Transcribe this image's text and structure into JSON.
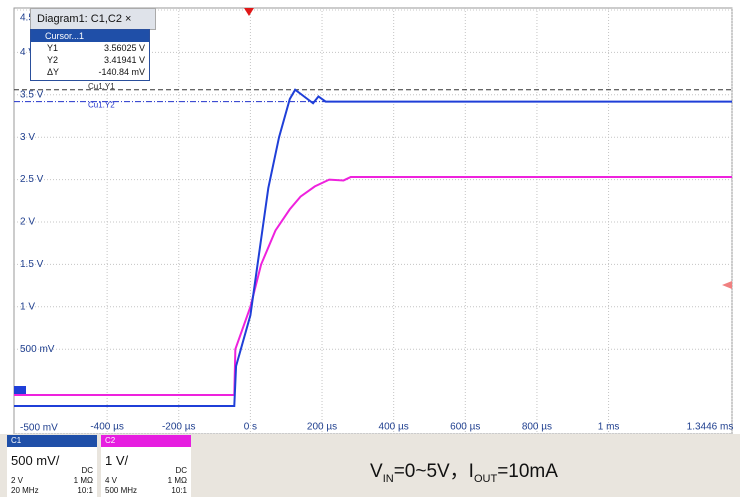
{
  "chart_data": {
    "type": "line",
    "xlim": [
      -660,
      1344.6
    ],
    "ylim": [
      -0.5,
      4.5
    ],
    "xticks": [
      {
        "value": -400,
        "label": "-400 µs"
      },
      {
        "value": -200,
        "label": "-200 µs"
      },
      {
        "value": 0,
        "label": "0 s"
      },
      {
        "value": 200,
        "label": "200 µs"
      },
      {
        "value": 400,
        "label": "400 µs"
      },
      {
        "value": 600,
        "label": "600 µs"
      },
      {
        "value": 800,
        "label": "800 µs"
      },
      {
        "value": 1000,
        "label": "1 ms"
      },
      {
        "value": 1344.6,
        "label": "1.3446 ms"
      }
    ],
    "yticks": [
      {
        "value": -0.5,
        "label": "-500 mV"
      },
      {
        "value": 0.5,
        "label": "500 mV"
      },
      {
        "value": 1,
        "label": "1 V"
      },
      {
        "value": 1.5,
        "label": "1.5 V"
      },
      {
        "value": 2,
        "label": "2 V"
      },
      {
        "value": 2.5,
        "label": "2.5 V"
      },
      {
        "value": 3,
        "label": "3 V"
      },
      {
        "value": 3.5,
        "label": "3.5 V"
      },
      {
        "value": 4,
        "label": "4 V"
      },
      {
        "value": 4.5,
        "label": "4.5 V"
      }
    ],
    "grid": true,
    "cursors": [
      {
        "name": "Cu1.Y1",
        "value": 3.56025,
        "color": "#333333"
      },
      {
        "name": "Cu1.Y2",
        "value": 3.41941,
        "color": "#2233cc"
      }
    ],
    "series": [
      {
        "name": "C1",
        "color": "#1f3fd8",
        "x": [
          -660,
          -45,
          -40,
          0,
          20,
          50,
          80,
          110,
          125,
          150,
          175,
          190,
          210,
          1344.6
        ],
        "values": [
          -0.17,
          -0.17,
          0.3,
          0.9,
          1.5,
          2.4,
          3.0,
          3.45,
          3.56,
          3.48,
          3.4,
          3.48,
          3.42,
          3.42
        ]
      },
      {
        "name": "C2",
        "color": "#ee22dd",
        "x": [
          -660,
          -45,
          -42,
          0,
          30,
          70,
          110,
          140,
          180,
          220,
          260,
          280,
          1344.6
        ],
        "values": [
          -0.04,
          -0.04,
          0.5,
          1.0,
          1.5,
          1.9,
          2.15,
          2.3,
          2.42,
          2.5,
          2.49,
          2.53,
          2.53
        ]
      }
    ]
  },
  "ui": {
    "tab": "Diagram1: C1,C2 ×",
    "cursor_title": "Cursor...1",
    "cursor_rows": [
      [
        "Y1",
        "3.56025 V"
      ],
      [
        "Y2",
        "3.41941 V"
      ],
      [
        "ΔY",
        "-140.84 mV"
      ]
    ],
    "channels": [
      {
        "name": "C1",
        "scale": "500 mV/",
        "coupling": "DC",
        "offset": "2 V",
        "impedance": "1 MΩ",
        "bandwidth": "20 MHz",
        "probe": "10:1"
      },
      {
        "name": "C2",
        "scale": "1 V/",
        "coupling": "DC",
        "offset": "4 V",
        "impedance": "1 MΩ",
        "bandwidth": "500 MHz",
        "probe": "10:1"
      }
    ],
    "note": [
      "V",
      "IN",
      "=0~5V，I",
      "OUT",
      "=10mA"
    ]
  }
}
